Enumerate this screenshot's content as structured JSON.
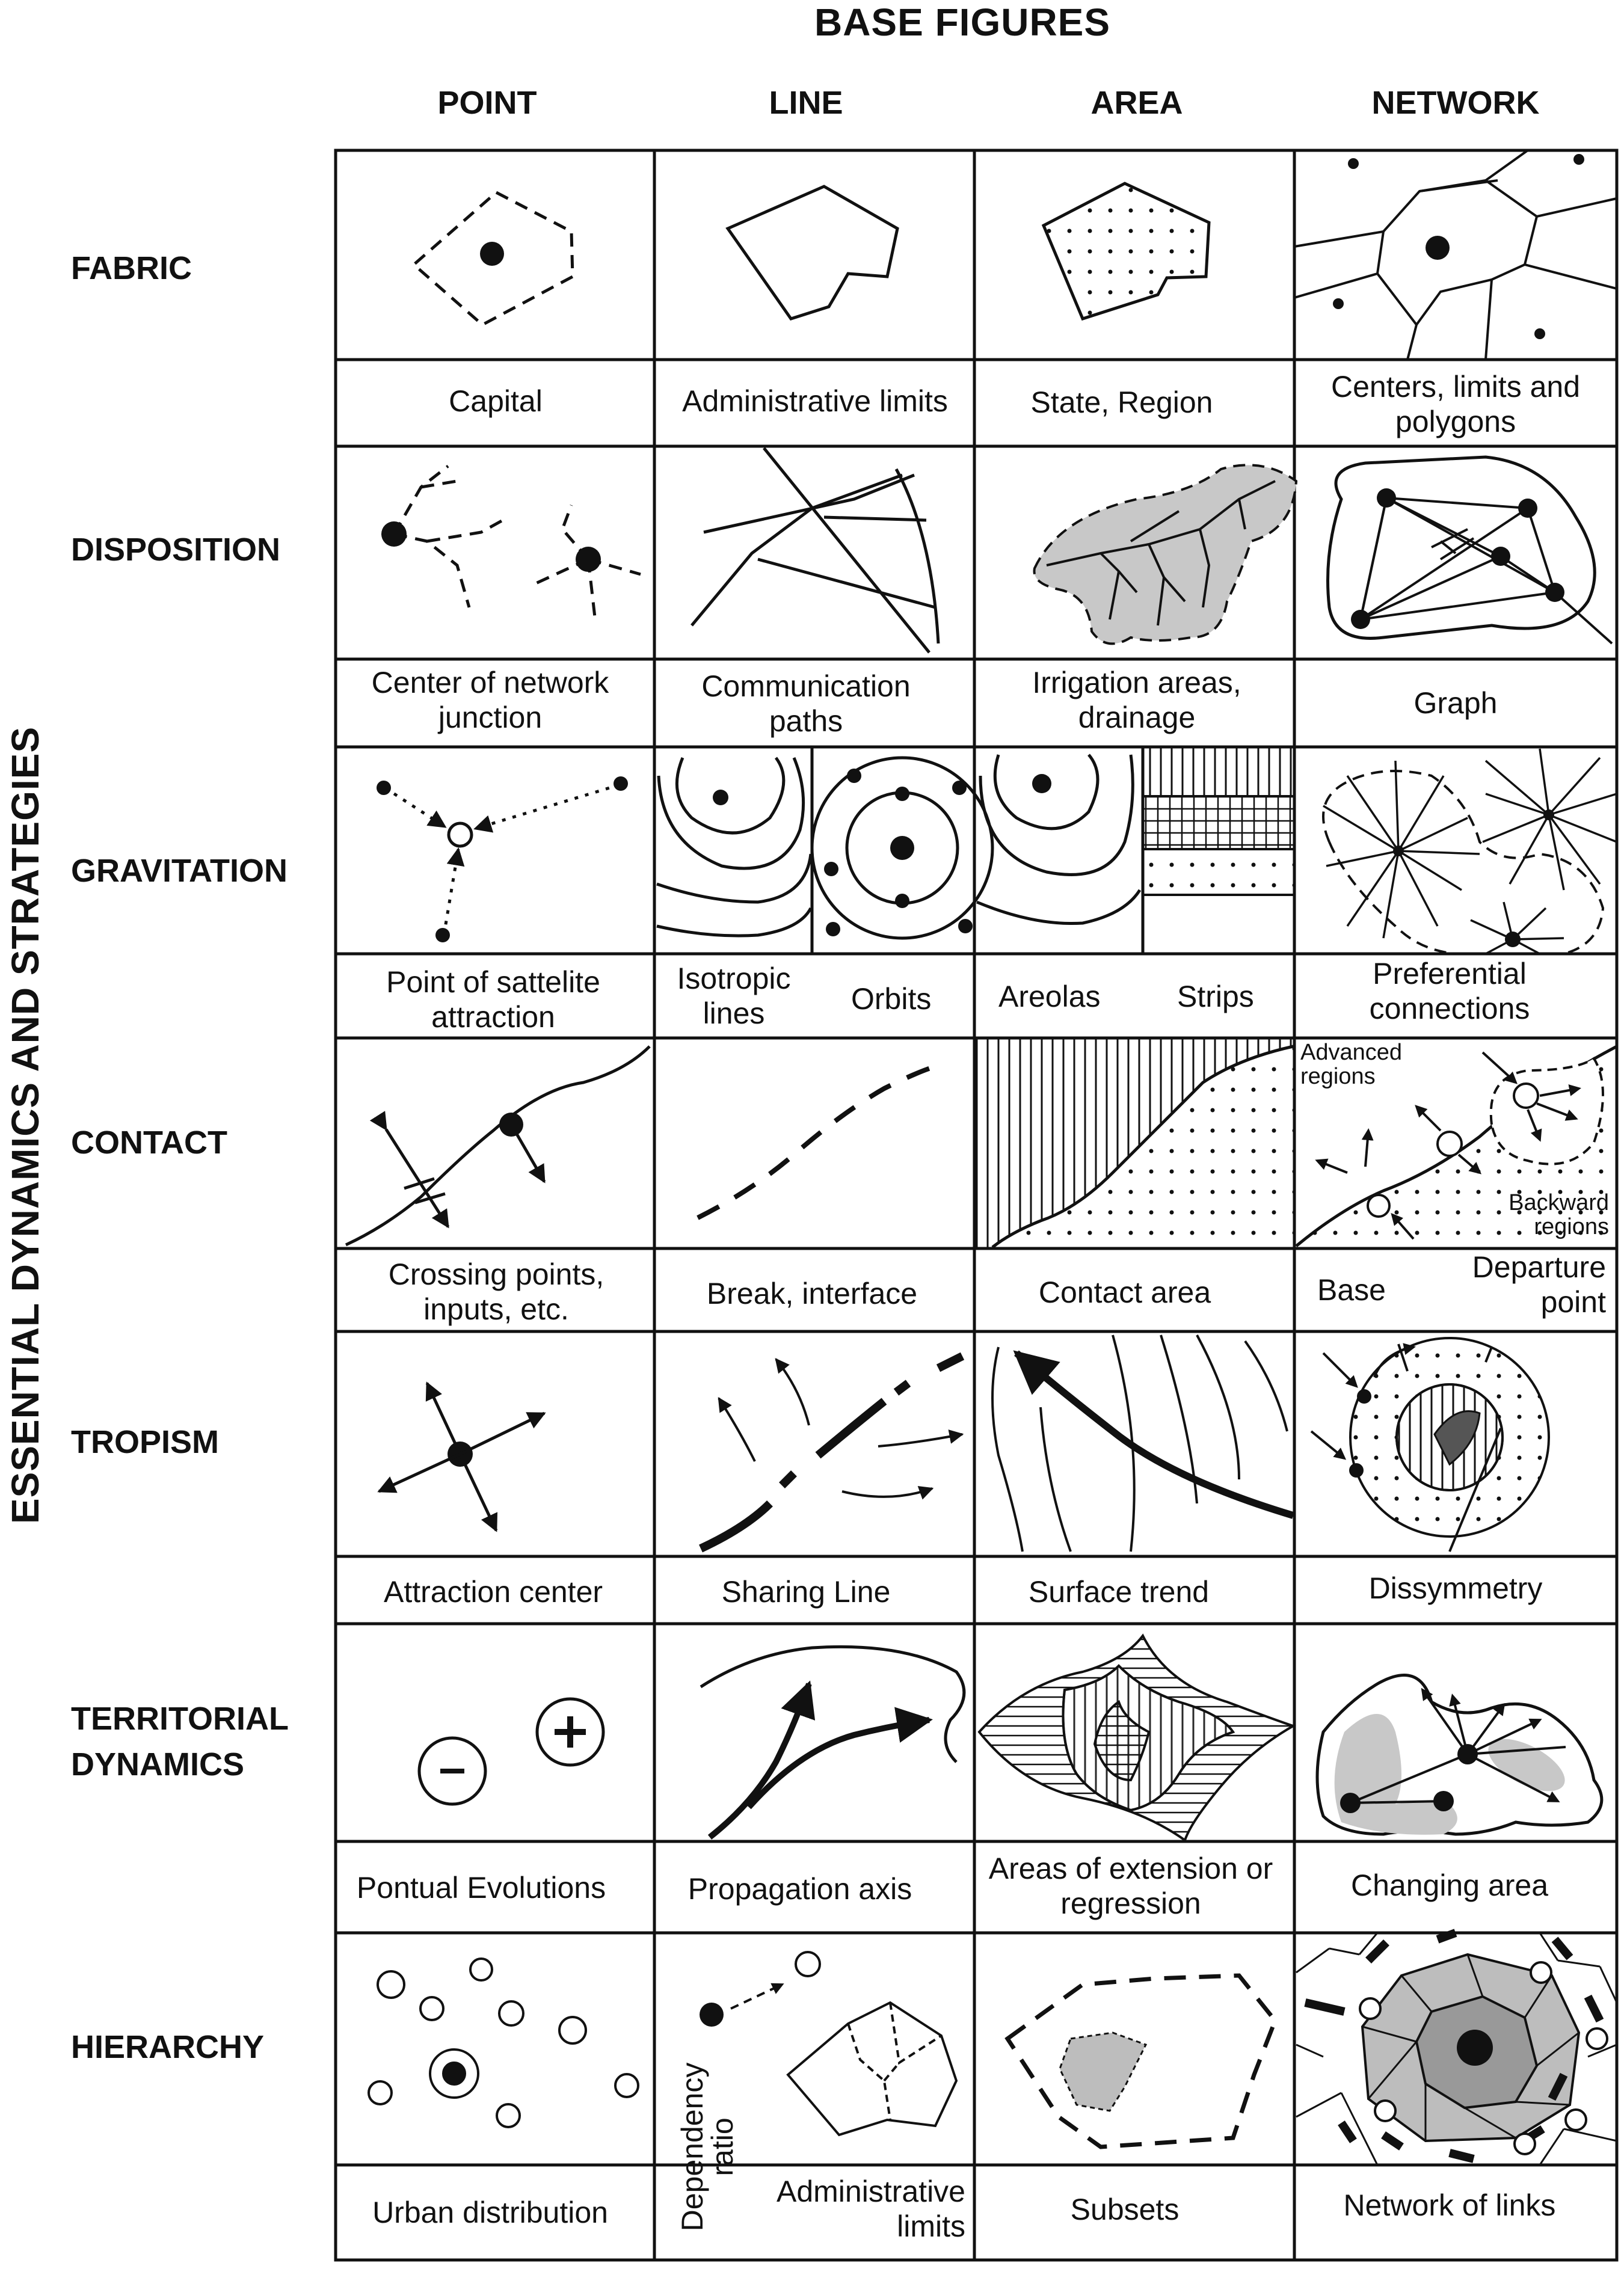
{
  "title": "BASE FIGURES",
  "side_title": "ESSENTIAL DYNAMICS AND STRATEGIES",
  "columns": [
    "POINT",
    "LINE",
    "AREA",
    "NETWORK"
  ],
  "rows": [
    {
      "label": "FABRIC",
      "captions": [
        "Capital",
        "Administrative limits",
        "State, Region",
        "Centers, limits and polygons"
      ]
    },
    {
      "label": "DISPOSITION",
      "captions": [
        "Center of network junction",
        "Communication paths",
        "Irrigation areas, drainage",
        "Graph"
      ]
    },
    {
      "label": "GRAVITATION",
      "captions": [
        "Point of sattelite attraction",
        "Isotropic lines",
        "Orbits",
        "Areolas",
        "Strips",
        "Preferential connections"
      ]
    },
    {
      "label": "CONTACT",
      "captions": [
        "Crossing points, inputs, etc.",
        "Break, interface",
        "Contact area",
        "Base",
        "Departure point"
      ],
      "notes": [
        "Advanced regions",
        "Backward regions"
      ]
    },
    {
      "label": "TROPISM",
      "captions": [
        "Attraction center",
        "Sharing Line",
        "Surface trend",
        "Dissymmetry"
      ]
    },
    {
      "label": "TERRITORIAL DYNAMICS",
      "captions": [
        "Pontual Evolutions",
        "Propagation axis",
        "Areas of extension or regression",
        "Changing area"
      ]
    },
    {
      "label": "HIERARCHY",
      "captions": [
        "Urban distribution",
        "Dependency ratio",
        "Administrative limits",
        "Subsets",
        "Network of links"
      ]
    }
  ]
}
